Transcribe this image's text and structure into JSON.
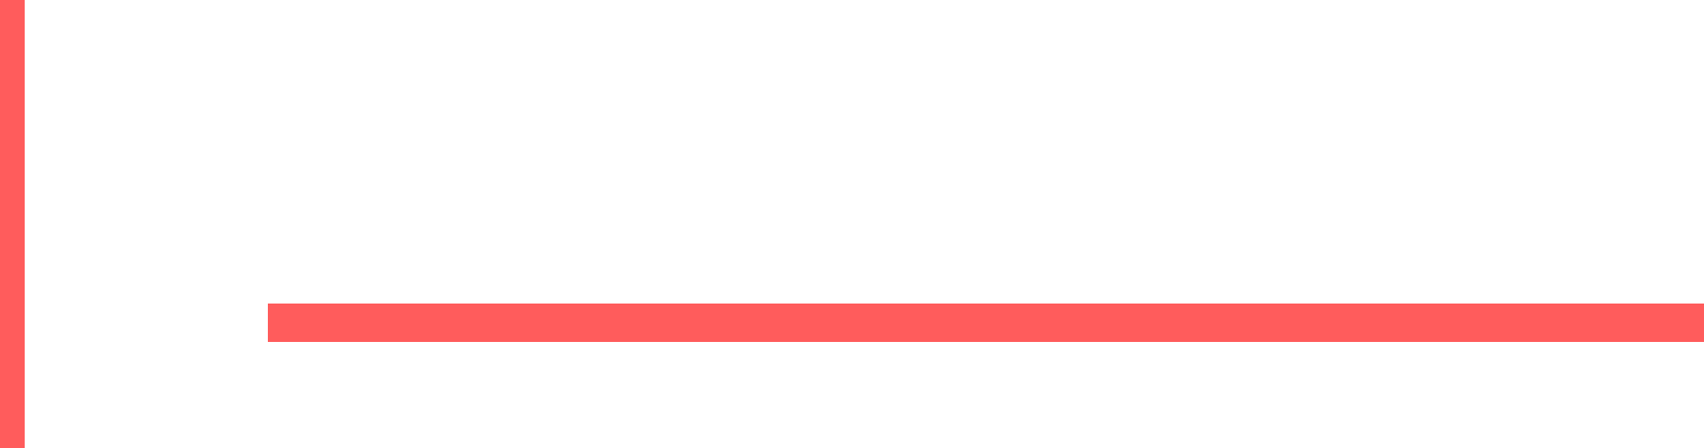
{
  "colors": {
    "accent": "#ff5c5c",
    "background": "#ffffff"
  },
  "shapes": [
    {
      "name": "vertical-accent-bar",
      "color_key": "accent"
    },
    {
      "name": "horizontal-accent-bar",
      "color_key": "accent"
    }
  ]
}
